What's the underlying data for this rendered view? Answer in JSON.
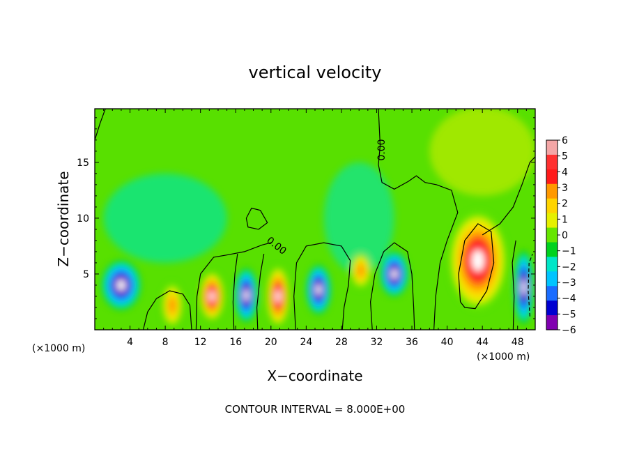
{
  "chart_data": {
    "type": "heatmap",
    "title": "vertical velocity",
    "xlabel": "X−coordinate",
    "ylabel": "Z−coordinate",
    "x_unit_left": "(×1000 m)",
    "x_unit_right": "(×1000 m)",
    "xlim": [
      0,
      50
    ],
    "ylim": [
      0,
      19.8
    ],
    "x_ticks": [
      4,
      8,
      12,
      16,
      20,
      24,
      28,
      32,
      36,
      40,
      44,
      48
    ],
    "x_tick_labels": [
      "4",
      "8",
      "12",
      "16",
      "20",
      "24",
      "28",
      "32",
      "36",
      "40",
      "44",
      "48"
    ],
    "y_ticks": [
      5,
      10,
      15
    ],
    "y_tick_labels": [
      "5",
      "10",
      "15"
    ],
    "colorbar": {
      "levels": [
        6,
        5,
        4,
        3,
        2,
        1,
        0,
        -1,
        -2,
        -3,
        -4,
        -5,
        -6
      ],
      "labels": [
        "6",
        "5",
        "4",
        "3",
        "2",
        "1",
        "0",
        "−1",
        "−2",
        "−3",
        "−4",
        "−5",
        "−6"
      ],
      "colors": [
        "#f4a6a6",
        "#ff3030",
        "#ff1a1a",
        "#ff9900",
        "#ffd400",
        "#e6f000",
        "#66e600",
        "#00d21e",
        "#00e6c8",
        "#00c4ff",
        "#1a6cff",
        "#0000d0",
        "#8000b0"
      ]
    },
    "contour_label": "0.00",
    "contour_interval_text": "CONTOUR INTERVAL = 8.000E+00",
    "features": [
      {
        "kind": "downdraft",
        "x": 3.0,
        "z": 4.0,
        "rx": 2.2,
        "rz": 2.2,
        "peak": -7
      },
      {
        "kind": "updraft",
        "x": 8.8,
        "z": 2.2,
        "rx": 1.2,
        "rz": 2.0,
        "peak": 4
      },
      {
        "kind": "updraft",
        "x": 13.3,
        "z": 3.0,
        "rx": 1.4,
        "rz": 2.2,
        "peak": 7
      },
      {
        "kind": "downdraft",
        "x": 17.2,
        "z": 3.1,
        "rx": 1.3,
        "rz": 2.4,
        "peak": -7
      },
      {
        "kind": "updraft",
        "x": 20.8,
        "z": 3.0,
        "rx": 1.3,
        "rz": 2.7,
        "peak": 7
      },
      {
        "kind": "downdraft",
        "x": 25.4,
        "z": 3.6,
        "rx": 1.4,
        "rz": 2.2,
        "peak": -7
      },
      {
        "kind": "updraft",
        "x": 30.2,
        "z": 5.3,
        "rx": 1.2,
        "rz": 1.6,
        "peak": 4
      },
      {
        "kind": "downdraft",
        "x": 34.0,
        "z": 5.0,
        "rx": 1.6,
        "rz": 2.0,
        "peak": -7
      },
      {
        "kind": "updraft",
        "x": 43.5,
        "z": 6.2,
        "rx": 3.3,
        "rz": 4.4,
        "peak": 9
      },
      {
        "kind": "downdraft",
        "x": 48.7,
        "z": 3.8,
        "rx": 1.1,
        "rz": 3.3,
        "peak": -8
      }
    ]
  }
}
